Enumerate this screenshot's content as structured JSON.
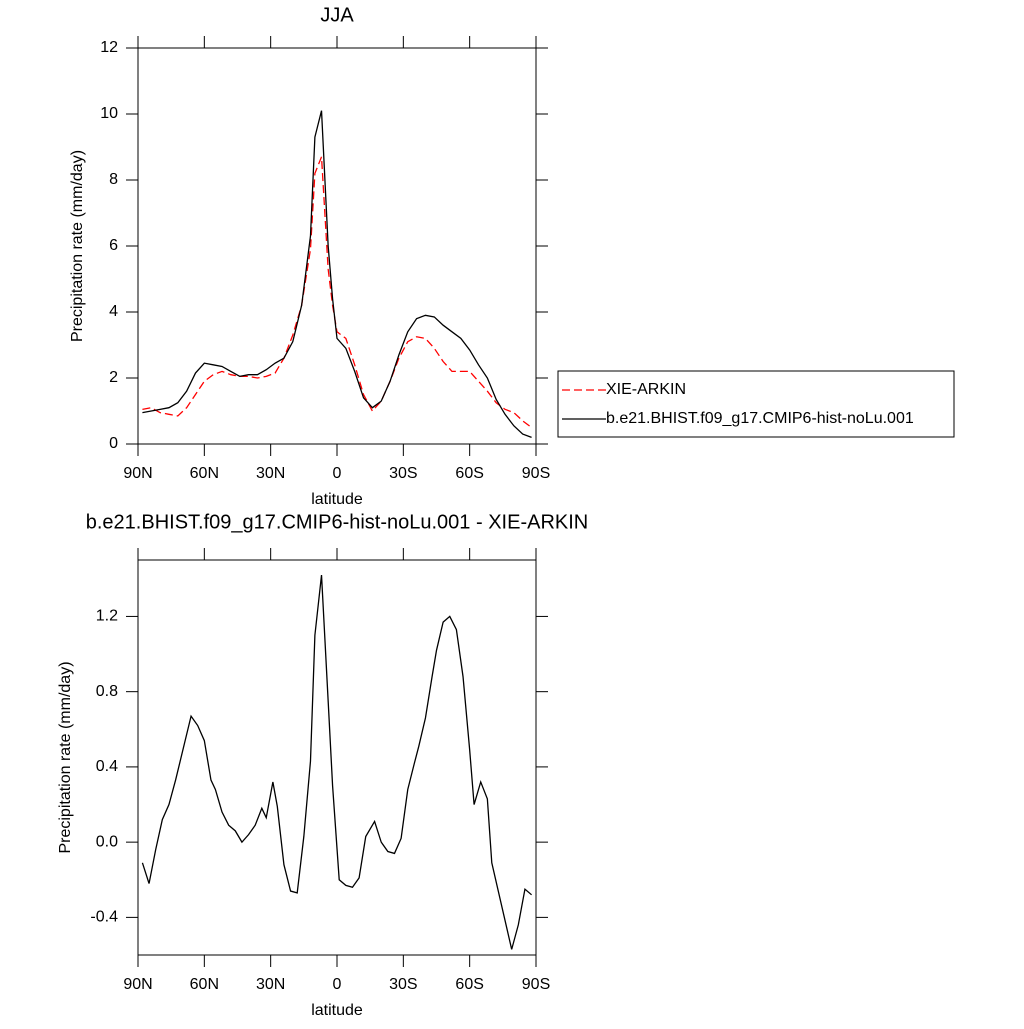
{
  "chart_data": [
    {
      "type": "line",
      "title": "JJA",
      "xlabel": "latitude",
      "ylabel": "Precipitation rate (mm/day)",
      "x": [
        88,
        84,
        80,
        76,
        72,
        68,
        64,
        60,
        56,
        52,
        48,
        44,
        40,
        36,
        32,
        28,
        24,
        20,
        16,
        12,
        10,
        7,
        4,
        2,
        0,
        -4,
        -8,
        -12,
        -16,
        -20,
        -24,
        -28,
        -32,
        -36,
        -40,
        -44,
        -48,
        -52,
        -56,
        -60,
        -64,
        -68,
        -72,
        -76,
        -80,
        -84,
        -88
      ],
      "series": [
        {
          "name": "XIE-ARKIN",
          "color": "#ff0000",
          "linestyle": "dashed",
          "values": [
            1.05,
            1.1,
            0.95,
            0.9,
            0.85,
            1.1,
            1.5,
            1.9,
            2.1,
            2.2,
            2.1,
            2.05,
            2.05,
            2.0,
            2.05,
            2.15,
            2.6,
            3.3,
            4.2,
            5.9,
            8.2,
            8.7,
            5.3,
            4.2,
            3.4,
            3.2,
            2.4,
            1.5,
            1.0,
            1.3,
            1.9,
            2.6,
            3.1,
            3.25,
            3.2,
            2.9,
            2.5,
            2.2,
            2.2,
            2.2,
            1.9,
            1.6,
            1.25,
            1.05,
            0.95,
            0.7,
            0.5
          ]
        },
        {
          "name": "b.e21.BHIST.f09_g17.CMIP6-hist-noLu.001",
          "color": "#000000",
          "linestyle": "solid",
          "values": [
            0.95,
            1.0,
            1.05,
            1.1,
            1.25,
            1.6,
            2.15,
            2.45,
            2.4,
            2.35,
            2.2,
            2.05,
            2.1,
            2.1,
            2.25,
            2.45,
            2.6,
            3.1,
            4.2,
            6.3,
            9.3,
            10.1,
            6.0,
            4.4,
            3.2,
            2.9,
            2.2,
            1.4,
            1.1,
            1.3,
            1.9,
            2.7,
            3.4,
            3.8,
            3.9,
            3.85,
            3.6,
            3.4,
            3.2,
            2.85,
            2.4,
            2.0,
            1.35,
            0.9,
            0.55,
            0.3,
            0.2
          ]
        }
      ],
      "xlim": [
        90,
        -90
      ],
      "xticks": [
        {
          "value": 90,
          "label": "90N"
        },
        {
          "value": 60,
          "label": "60N"
        },
        {
          "value": 30,
          "label": "30N"
        },
        0,
        {
          "value": -30,
          "label": "30S"
        },
        {
          "value": -60,
          "label": "60S"
        },
        {
          "value": -90,
          "label": "90S"
        }
      ],
      "ylim": [
        0,
        12
      ],
      "yticks": [
        0,
        2,
        4,
        6,
        8,
        10,
        12
      ],
      "legend": "right"
    },
    {
      "type": "line",
      "title": "b.e21.BHIST.f09_g17.CMIP6-hist-noLu.001 - XIE-ARKIN",
      "xlabel": "latitude",
      "ylabel": "Precipitation rate (mm/day)",
      "x": [
        88,
        85,
        82,
        79,
        76,
        73,
        66,
        63,
        60,
        57,
        55,
        52,
        49,
        46,
        43,
        40,
        37,
        34,
        32,
        29,
        27,
        24,
        21,
        18,
        15,
        12,
        10,
        7,
        4,
        2,
        -1,
        -4,
        -7,
        -10,
        -13,
        -17,
        -20,
        -23,
        -26,
        -29,
        -32,
        -35,
        -37,
        -40,
        -43,
        -45,
        -48,
        -51,
        -54,
        -57,
        -60,
        -62,
        -65,
        -68,
        -70,
        -79,
        -82,
        -85,
        -88
      ],
      "series": [
        {
          "name": "b.e21.BHIST.f09_g17.CMIP6-hist-noLu.001 - XIE-ARKIN",
          "color": "#000000",
          "linestyle": "solid",
          "values": [
            -0.11,
            -0.22,
            -0.04,
            0.12,
            0.2,
            0.33,
            0.67,
            0.62,
            0.54,
            0.33,
            0.28,
            0.16,
            0.09,
            0.06,
            0.0,
            0.04,
            0.09,
            0.18,
            0.13,
            0.32,
            0.19,
            -0.12,
            -0.26,
            -0.27,
            0.03,
            0.43,
            1.1,
            1.42,
            0.75,
            0.3,
            -0.2,
            -0.23,
            -0.24,
            -0.19,
            0.03,
            0.11,
            0.0,
            -0.05,
            -0.06,
            0.02,
            0.28,
            0.42,
            0.51,
            0.66,
            0.88,
            1.02,
            1.17,
            1.2,
            1.13,
            0.88,
            0.49,
            0.2,
            0.32,
            0.23,
            -0.11,
            -0.57,
            -0.44,
            -0.25,
            -0.28
          ]
        }
      ],
      "xlim": [
        90,
        -90
      ],
      "xticks": [
        {
          "value": 90,
          "label": "90N"
        },
        {
          "value": 60,
          "label": "60N"
        },
        {
          "value": 30,
          "label": "30N"
        },
        0,
        {
          "value": -30,
          "label": "30S"
        },
        {
          "value": -60,
          "label": "60S"
        },
        {
          "value": -90,
          "label": "90S"
        }
      ],
      "ylim": [
        -0.6,
        1.5
      ],
      "yticks": [
        -0.4,
        {
          "value": 0,
          "label": "0.0"
        },
        0.4,
        0.8,
        1.2
      ]
    }
  ]
}
